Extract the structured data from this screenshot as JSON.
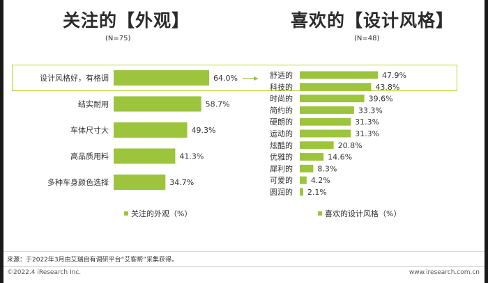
{
  "colors": {
    "bar": "#9cc43c",
    "highlight_border": "#b5d334",
    "arrow": "#9cc43c"
  },
  "chart_data": [
    {
      "type": "bar",
      "orientation": "horizontal",
      "title": "关注的【外观】",
      "subtitle": "(N=75)",
      "categories": [
        "设计风格好，有格调",
        "结实耐用",
        "车体尺寸大",
        "高品质用料",
        "多种车身颜色选择"
      ],
      "values": [
        64.0,
        58.7,
        49.3,
        41.3,
        34.7
      ],
      "value_labels": [
        "64.0%",
        "58.7%",
        "49.3%",
        "41.3%",
        "34.7%"
      ],
      "legend": "关注的外观（%）",
      "grid": false
    },
    {
      "type": "bar",
      "orientation": "horizontal",
      "title": "喜欢的【设计风格】",
      "subtitle": "(N=48)",
      "categories": [
        "舒适的",
        "科技的",
        "时尚的",
        "简约的",
        "硬朗的",
        "运动的",
        "炫酷的",
        "优雅的",
        "犀利的",
        "可爱的",
        "圆润的"
      ],
      "values": [
        47.9,
        43.8,
        39.6,
        33.3,
        31.3,
        31.3,
        20.8,
        14.6,
        8.3,
        4.2,
        2.1
      ],
      "value_labels": [
        "47.9%",
        "43.8%",
        "39.6%",
        "33.3%",
        "31.3%",
        "31.3%",
        "20.8%",
        "14.6%",
        "8.3%",
        "4.2%",
        "2.1%"
      ],
      "legend": "喜欢的设计风格（%）",
      "grid": false
    }
  ],
  "source": "来源：于2022年3月由艾瑞自有调研平台“艾客帮”采集获得。",
  "footer": {
    "copyright": "©2022.4 iResearch Inc.",
    "website": "www.iresearch.com.cn"
  }
}
